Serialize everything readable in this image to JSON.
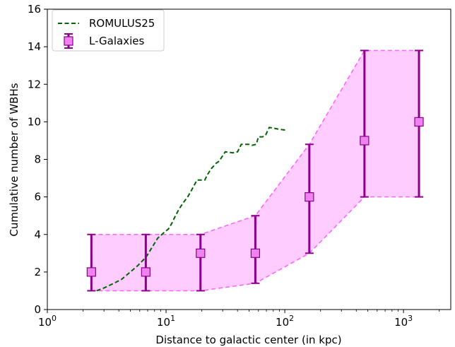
{
  "chart_data": {
    "type": "line",
    "xlabel": "Distance to galactic center (in kpc)",
    "ylabel": "Cumulative number of WBHs",
    "xscale": "log",
    "xlim": [
      1,
      2500
    ],
    "ylim": [
      0,
      16
    ],
    "x_ticks": [
      {
        "value": 1,
        "base": "10",
        "exp": "0"
      },
      {
        "value": 10,
        "base": "10",
        "exp": "1"
      },
      {
        "value": 100,
        "base": "10",
        "exp": "2"
      },
      {
        "value": 1000,
        "base": "10",
        "exp": "3"
      }
    ],
    "y_ticks": [
      0,
      2,
      4,
      6,
      8,
      10,
      12,
      14,
      16
    ],
    "legend": {
      "placement": "top-left",
      "entries": [
        "ROMULUS25",
        "L-Galaxies"
      ]
    },
    "series": [
      {
        "name": "ROMULUS25",
        "style": "dashed-line",
        "color": "#006400",
        "points": [
          [
            2.6,
            1.0
          ],
          [
            3.0,
            1.15
          ],
          [
            3.5,
            1.35
          ],
          [
            4.2,
            1.6
          ],
          [
            5.0,
            2.0
          ],
          [
            5.8,
            2.35
          ],
          [
            6.8,
            2.8
          ],
          [
            7.6,
            3.3
          ],
          [
            8.5,
            3.8
          ],
          [
            9.6,
            4.1
          ],
          [
            10.5,
            4.3
          ],
          [
            11.2,
            4.6
          ],
          [
            12.0,
            5.0
          ],
          [
            13.0,
            5.4
          ],
          [
            14.0,
            5.7
          ],
          [
            15.2,
            6.0
          ],
          [
            16.2,
            6.3
          ],
          [
            17.2,
            6.6
          ],
          [
            18.2,
            6.9
          ],
          [
            21.2,
            6.9
          ],
          [
            22.4,
            7.2
          ],
          [
            24.0,
            7.5
          ],
          [
            26.5,
            7.8
          ],
          [
            28.0,
            7.9
          ],
          [
            30.0,
            8.2
          ],
          [
            31.5,
            8.4
          ],
          [
            36.5,
            8.35
          ],
          [
            40.0,
            8.4
          ],
          [
            43.0,
            8.8
          ],
          [
            50.0,
            8.8
          ],
          [
            53.0,
            8.75
          ],
          [
            57.5,
            8.8
          ],
          [
            60.0,
            9.2
          ],
          [
            65.0,
            9.2
          ],
          [
            69.0,
            9.3
          ],
          [
            74.0,
            9.7
          ],
          [
            82.0,
            9.65
          ],
          [
            90.0,
            9.6
          ],
          [
            104.0,
            9.55
          ]
        ]
      },
      {
        "name": "L-Galaxies",
        "style": "errorbar",
        "color": "#8b008b",
        "marker_face": "#ee82ee",
        "band_color": "#ff00ff",
        "points": [
          {
            "x": 2.35,
            "y": 2,
            "low": 1,
            "high": 4
          },
          {
            "x": 6.75,
            "y": 2,
            "low": 1,
            "high": 4
          },
          {
            "x": 19.5,
            "y": 3,
            "low": 1,
            "high": 4
          },
          {
            "x": 56.5,
            "y": 3,
            "low": 1.4,
            "high": 5
          },
          {
            "x": 161,
            "y": 6,
            "low": 3,
            "high": 8.8
          },
          {
            "x": 469,
            "y": 9,
            "low": 6,
            "high": 13.8
          },
          {
            "x": 1350,
            "y": 10,
            "low": 6,
            "high": 13.8
          }
        ]
      }
    ]
  }
}
